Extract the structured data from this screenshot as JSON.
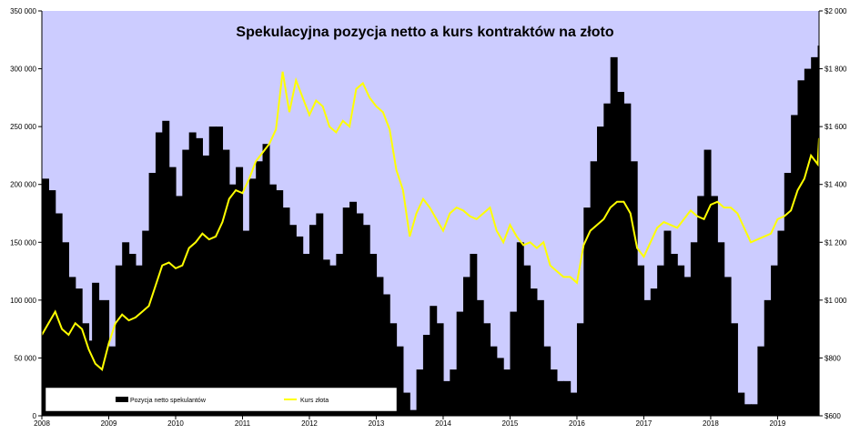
{
  "chart_data": {
    "type": "bar+line",
    "title": "Spekulacyjna pozycja netto a kurs kontraktów na złoto",
    "xlabel": "",
    "ylabel_left": "",
    "ylabel_right": "",
    "x_ticks": [
      "2008",
      "2009",
      "2010",
      "2011",
      "2012",
      "2013",
      "2014",
      "2015",
      "2016",
      "2017",
      "2018",
      "2019"
    ],
    "x_range": [
      2008.0,
      2019.62
    ],
    "y_left": {
      "range": [
        0,
        350000
      ],
      "ticks": [
        0,
        50000,
        100000,
        150000,
        200000,
        250000,
        300000,
        350000
      ],
      "tick_labels": [
        "0",
        "50 000",
        "100 000",
        "150 000",
        "200 000",
        "250 000",
        "300 000",
        "350 000"
      ]
    },
    "y_right": {
      "range": [
        600,
        2000
      ],
      "ticks": [
        600,
        800,
        1000,
        1200,
        1400,
        1600,
        1800,
        2000
      ],
      "tick_labels": [
        "$600",
        "$800",
        "$1 000",
        "$1 200",
        "$1 400",
        "$1 600",
        "$1 800",
        "$2 000"
      ]
    },
    "grid": false,
    "plot_background": "#ccccff",
    "legend": {
      "placement": "bottom-left",
      "entries": [
        "Pozycja netto spekulantów",
        "Kurs złota"
      ]
    },
    "series": [
      {
        "name": "Pozycja netto spekulantów",
        "type": "bar",
        "axis": "left",
        "color": "#000000",
        "x": [
          2008.0,
          2008.1,
          2008.2,
          2008.3,
          2008.4,
          2008.5,
          2008.6,
          2008.7,
          2008.75,
          2008.85,
          2009.0,
          2009.1,
          2009.2,
          2009.3,
          2009.4,
          2009.5,
          2009.6,
          2009.7,
          2009.8,
          2009.9,
          2010.0,
          2010.1,
          2010.2,
          2010.3,
          2010.4,
          2010.5,
          2010.6,
          2010.7,
          2010.8,
          2010.9,
          2011.0,
          2011.1,
          2011.2,
          2011.3,
          2011.4,
          2011.5,
          2011.6,
          2011.7,
          2011.8,
          2011.9,
          2012.0,
          2012.1,
          2012.2,
          2012.3,
          2012.4,
          2012.5,
          2012.6,
          2012.7,
          2012.8,
          2012.9,
          2013.0,
          2013.1,
          2013.2,
          2013.3,
          2013.4,
          2013.5,
          2013.6,
          2013.7,
          2013.8,
          2013.9,
          2014.0,
          2014.1,
          2014.2,
          2014.3,
          2014.4,
          2014.5,
          2014.6,
          2014.7,
          2014.8,
          2014.9,
          2015.0,
          2015.1,
          2015.2,
          2015.3,
          2015.4,
          2015.5,
          2015.6,
          2015.7,
          2015.8,
          2015.9,
          2016.0,
          2016.1,
          2016.2,
          2016.3,
          2016.4,
          2016.5,
          2016.6,
          2016.7,
          2016.8,
          2016.9,
          2017.0,
          2017.1,
          2017.2,
          2017.3,
          2017.4,
          2017.5,
          2017.6,
          2017.7,
          2017.8,
          2017.9,
          2018.0,
          2018.1,
          2018.2,
          2018.3,
          2018.4,
          2018.5,
          2018.6,
          2018.7,
          2018.8,
          2018.9,
          2019.0,
          2019.1,
          2019.2,
          2019.3,
          2019.4,
          2019.5,
          2019.6
        ],
        "values": [
          205000,
          195000,
          175000,
          150000,
          120000,
          110000,
          80000,
          65000,
          115000,
          100000,
          60000,
          130000,
          150000,
          140000,
          130000,
          160000,
          210000,
          245000,
          255000,
          215000,
          190000,
          230000,
          245000,
          240000,
          225000,
          250000,
          250000,
          230000,
          200000,
          215000,
          160000,
          205000,
          220000,
          235000,
          200000,
          195000,
          180000,
          165000,
          155000,
          140000,
          165000,
          175000,
          135000,
          130000,
          140000,
          180000,
          185000,
          175000,
          165000,
          140000,
          120000,
          105000,
          80000,
          60000,
          20000,
          5000,
          40000,
          70000,
          95000,
          80000,
          30000,
          40000,
          90000,
          120000,
          140000,
          100000,
          80000,
          60000,
          50000,
          40000,
          90000,
          150000,
          130000,
          110000,
          100000,
          60000,
          40000,
          30000,
          30000,
          20000,
          80000,
          180000,
          220000,
          250000,
          270000,
          310000,
          280000,
          270000,
          220000,
          130000,
          100000,
          110000,
          130000,
          160000,
          140000,
          130000,
          120000,
          150000,
          190000,
          230000,
          190000,
          150000,
          120000,
          80000,
          20000,
          10000,
          10000,
          60000,
          100000,
          130000,
          160000,
          210000,
          260000,
          290000,
          300000,
          310000,
          320000
        ]
      },
      {
        "name": "Kurs złota",
        "type": "line",
        "axis": "right",
        "color": "#ffff00",
        "x": [
          2008.0,
          2008.1,
          2008.2,
          2008.3,
          2008.4,
          2008.5,
          2008.6,
          2008.7,
          2008.8,
          2008.9,
          2009.0,
          2009.1,
          2009.2,
          2009.3,
          2009.4,
          2009.5,
          2009.6,
          2009.7,
          2009.8,
          2009.9,
          2010.0,
          2010.1,
          2010.2,
          2010.3,
          2010.4,
          2010.5,
          2010.6,
          2010.7,
          2010.8,
          2010.9,
          2011.0,
          2011.1,
          2011.2,
          2011.3,
          2011.4,
          2011.5,
          2011.6,
          2011.7,
          2011.8,
          2011.9,
          2012.0,
          2012.1,
          2012.2,
          2012.3,
          2012.4,
          2012.5,
          2012.6,
          2012.7,
          2012.8,
          2012.9,
          2013.0,
          2013.1,
          2013.2,
          2013.3,
          2013.4,
          2013.5,
          2013.6,
          2013.7,
          2013.8,
          2013.9,
          2014.0,
          2014.1,
          2014.2,
          2014.3,
          2014.4,
          2014.5,
          2014.6,
          2014.7,
          2014.8,
          2014.9,
          2015.0,
          2015.1,
          2015.2,
          2015.3,
          2015.4,
          2015.5,
          2015.6,
          2015.7,
          2015.8,
          2015.9,
          2016.0,
          2016.1,
          2016.2,
          2016.3,
          2016.4,
          2016.5,
          2016.6,
          2016.7,
          2016.8,
          2016.9,
          2017.0,
          2017.1,
          2017.2,
          2017.3,
          2017.4,
          2017.5,
          2017.6,
          2017.7,
          2017.8,
          2017.9,
          2018.0,
          2018.1,
          2018.2,
          2018.3,
          2018.4,
          2018.5,
          2018.6,
          2018.7,
          2018.8,
          2018.9,
          2019.0,
          2019.1,
          2019.2,
          2019.3,
          2019.4,
          2019.5,
          2019.6,
          2019.62
        ],
        "values": [
          880,
          920,
          960,
          900,
          880,
          920,
          900,
          830,
          780,
          760,
          850,
          920,
          950,
          930,
          940,
          960,
          980,
          1050,
          1120,
          1130,
          1110,
          1120,
          1180,
          1200,
          1230,
          1210,
          1220,
          1270,
          1350,
          1380,
          1370,
          1420,
          1480,
          1510,
          1540,
          1590,
          1790,
          1650,
          1760,
          1700,
          1640,
          1690,
          1670,
          1600,
          1580,
          1620,
          1600,
          1730,
          1750,
          1700,
          1670,
          1650,
          1590,
          1450,
          1380,
          1220,
          1300,
          1350,
          1320,
          1280,
          1240,
          1300,
          1320,
          1310,
          1290,
          1280,
          1300,
          1320,
          1240,
          1200,
          1260,
          1220,
          1190,
          1200,
          1180,
          1200,
          1120,
          1100,
          1080,
          1080,
          1060,
          1190,
          1240,
          1260,
          1280,
          1320,
          1340,
          1340,
          1300,
          1180,
          1150,
          1200,
          1250,
          1270,
          1260,
          1250,
          1280,
          1310,
          1290,
          1280,
          1330,
          1340,
          1320,
          1320,
          1300,
          1250,
          1200,
          1210,
          1220,
          1230,
          1280,
          1290,
          1310,
          1380,
          1420,
          1500,
          1470,
          1560
        ]
      }
    ]
  }
}
